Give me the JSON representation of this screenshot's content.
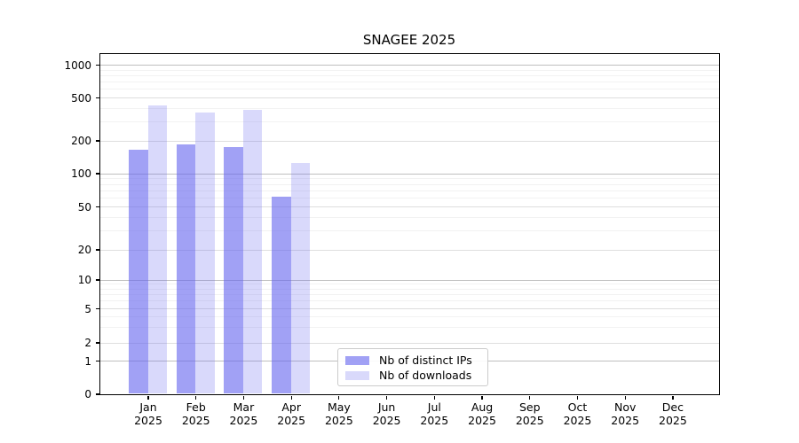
{
  "chart_data": {
    "type": "bar",
    "title": "SNAGEE 2025",
    "year": "2025",
    "months": [
      "Jan",
      "Feb",
      "Mar",
      "Apr",
      "May",
      "Jun",
      "Jul",
      "Aug",
      "Sep",
      "Oct",
      "Nov",
      "Dec"
    ],
    "categories": [
      "Jan 2025",
      "Feb 2025",
      "Mar 2025",
      "Apr 2025",
      "May 2025",
      "Jun 2025",
      "Jul 2025",
      "Aug 2025",
      "Sep 2025",
      "Oct 2025",
      "Nov 2025",
      "Dec 2025"
    ],
    "series": [
      {
        "key": "distinct-ips",
        "name": "Nb of distinct IPs",
        "fill": "rgba(102,102,238,0.61)",
        "solid_hex": "#a3a3f0",
        "values": [
          165,
          185,
          175,
          61,
          null,
          null,
          null,
          null,
          null,
          null,
          null,
          null
        ]
      },
      {
        "key": "downloads",
        "name": "Nb of downloads",
        "fill": "rgba(102,102,238,0.25)",
        "solid_hex": "#d9d9f9",
        "values": [
          425,
          365,
          385,
          124,
          null,
          null,
          null,
          null,
          null,
          null,
          null,
          null
        ]
      }
    ],
    "yscale": "symlog",
    "ytick_values": [
      0,
      1,
      2,
      5,
      10,
      20,
      50,
      100,
      200,
      500,
      1000
    ],
    "ytick_labels": [
      "0",
      "1",
      "2",
      "5",
      "10",
      "20",
      "50",
      "100",
      "200",
      "500",
      "1000"
    ],
    "ylim": [
      0,
      1250
    ],
    "grid": "major+minor",
    "legend_position": "inside-bottom-center",
    "colors": {
      "bar_base": "#6666ee",
      "grid_decade": "#bfbfbf",
      "grid_major": "#dedede",
      "grid_minor": "#f2f2f2",
      "axis": "#000000"
    }
  }
}
